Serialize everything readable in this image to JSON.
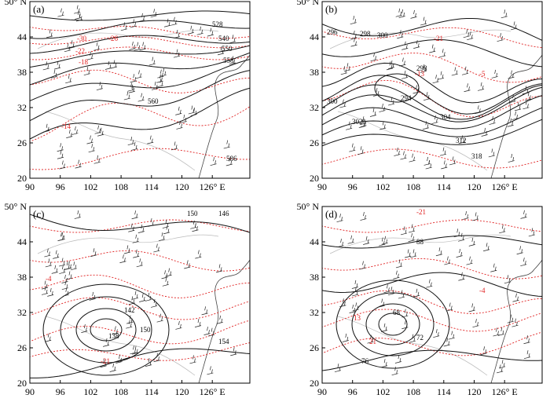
{
  "x_ticks": [
    "90",
    "96",
    "102",
    "108",
    "114",
    "120",
    "126° E"
  ],
  "y_ticks": [
    "50° N",
    "44",
    "38",
    "32",
    "26",
    "20"
  ],
  "panels": [
    {
      "label": "(a)",
      "black_labels": [
        "528",
        "540",
        "550",
        "558",
        "560",
        "586"
      ],
      "red_labels": [
        "-30",
        "-26",
        "-22",
        "-18",
        "-14"
      ]
    },
    {
      "label": "(b)",
      "black_labels": [
        "296",
        "298",
        "300",
        "298",
        "294",
        "300",
        "302",
        "304",
        "312",
        "318"
      ],
      "red_labels": [
        "-21",
        "-13",
        "-5"
      ]
    },
    {
      "label": "(c)",
      "black_labels": [
        "150",
        "146",
        "142",
        "138",
        "150",
        "154"
      ],
      "red_labels": [
        "-4",
        "-21"
      ]
    },
    {
      "label": "(d)",
      "black_labels": [
        "88",
        "68",
        "72",
        "76"
      ],
      "red_labels": [
        "-21",
        "-4",
        "13",
        "21"
      ]
    }
  ]
}
